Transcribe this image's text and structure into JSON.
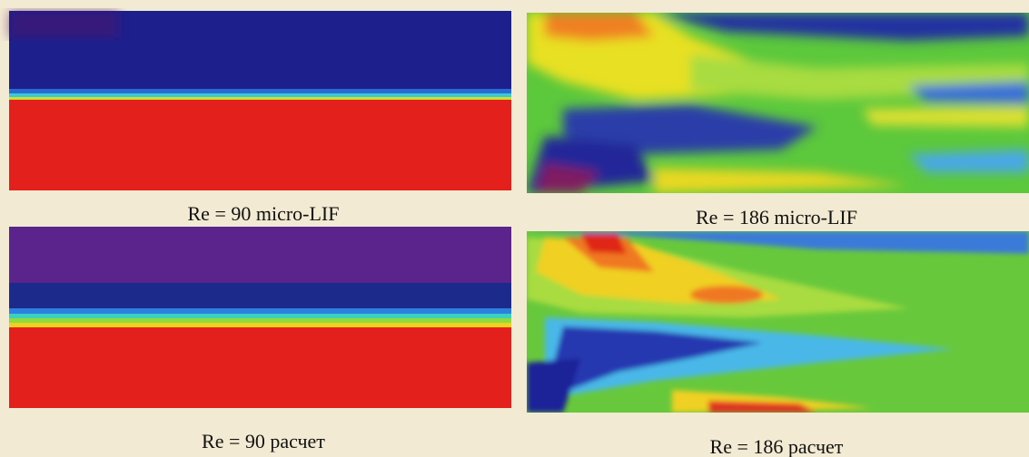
{
  "panels": [
    {
      "caption": "Re = 90 micro-LIF"
    },
    {
      "caption": "Re = 186 micro-LIF"
    },
    {
      "caption": "Re = 90 расчет"
    },
    {
      "caption": "Re = 186 расчет"
    }
  ]
}
